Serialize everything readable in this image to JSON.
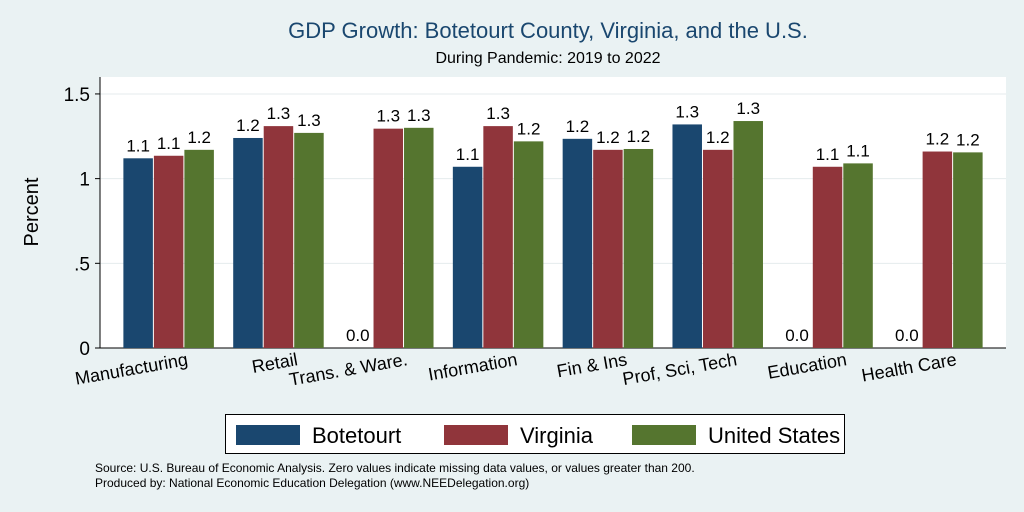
{
  "chart_data": {
    "type": "bar",
    "title": "GDP Growth: Botetourt County, Virginia, and the U.S.",
    "subtitle": "During Pandemic: 2019 to 2022",
    "ylabel": "Percent",
    "xlabel": "",
    "ylim": [
      0,
      1.6
    ],
    "yticks": [
      0,
      0.5,
      1,
      1.5
    ],
    "ytick_labels": [
      "0",
      ".5",
      "1",
      "1.5"
    ],
    "grid": true,
    "legend_position": "bottom",
    "categories": [
      "Manufacturing",
      "Retail",
      "Trans. & Ware.",
      "Information",
      "Fin & Ins",
      "Prof, Sci, Tech",
      "Education",
      "Health Care"
    ],
    "series": [
      {
        "name": "Botetourt",
        "color": "#1a476f",
        "values": [
          1.12,
          1.24,
          0,
          1.07,
          1.235,
          1.32,
          0,
          0
        ],
        "labels": [
          "1.1",
          "1.2",
          "0.0",
          "1.1",
          "1.2",
          "1.3",
          "0.0",
          "0.0"
        ]
      },
      {
        "name": "Virginia",
        "color": "#90353b",
        "values": [
          1.135,
          1.31,
          1.295,
          1.31,
          1.17,
          1.17,
          1.07,
          1.16
        ],
        "labels": [
          "1.1",
          "1.3",
          "1.3",
          "1.3",
          "1.2",
          "1.2",
          "1.1",
          "1.2"
        ]
      },
      {
        "name": "United States",
        "color": "#55752f",
        "values": [
          1.17,
          1.27,
          1.3,
          1.22,
          1.175,
          1.34,
          1.09,
          1.155
        ],
        "labels": [
          "1.2",
          "1.3",
          "1.3",
          "1.2",
          "1.2",
          "1.3",
          "1.1",
          "1.2"
        ]
      }
    ]
  },
  "notes": {
    "source": "Source: U.S. Bureau of Economic Analysis. Zero values indicate missing data values, or values greater than 200.",
    "produced": "Produced by: National Economic Education Delegation (www.NEEDelegation.org)"
  }
}
